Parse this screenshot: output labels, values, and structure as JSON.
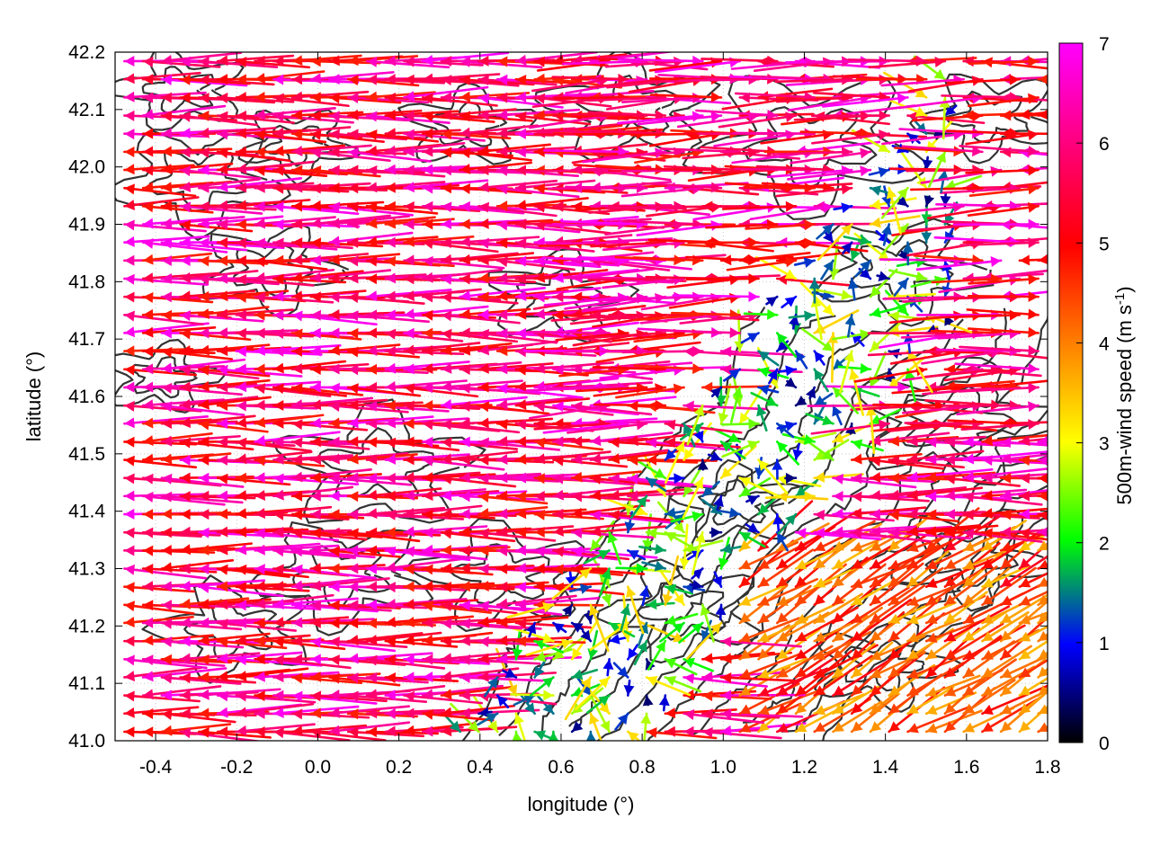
{
  "chart_data": {
    "type": "vector-field",
    "xlabel": "longitude (°)",
    "ylabel": "latitude (°)",
    "colorbar_label": "500m-wind speed (m s",
    "colorbar_label_sup": "-1",
    "colorbar_label_close": ")",
    "xlim": [
      -0.5,
      1.8
    ],
    "ylim": [
      41.0,
      42.2
    ],
    "xticks": [
      -0.4,
      -0.2,
      0.0,
      0.2,
      0.4,
      0.6,
      0.8,
      1.0,
      1.2,
      1.4,
      1.6,
      1.8
    ],
    "xtick_labels": [
      "-0.4",
      "-0.2",
      "0.0",
      "0.2",
      "0.4",
      "0.6",
      "0.8",
      "1.0",
      "1.2",
      "1.4",
      "1.6",
      "1.8"
    ],
    "yticks": [
      41.0,
      41.1,
      41.2,
      41.3,
      41.4,
      41.5,
      41.6,
      41.7,
      41.8,
      41.9,
      42.0,
      42.1,
      42.2
    ],
    "ytick_labels": [
      "41.0",
      "41.1",
      "41.2",
      "41.3",
      "41.4",
      "41.5",
      "41.6",
      "41.7",
      "41.8",
      "41.9",
      "42.0",
      "42.1",
      "42.2"
    ],
    "colorbar_range": [
      0,
      7
    ],
    "colorbar_ticks": [
      0,
      1,
      2,
      3,
      4,
      5,
      6,
      7
    ],
    "colorbar_tick_labels": [
      "0",
      "1",
      "2",
      "3",
      "4",
      "5",
      "6",
      "7"
    ],
    "colormap": [
      "#000000",
      "#0000ff",
      "#00ff00",
      "#ffff00",
      "#ff8000",
      "#ff0000",
      "#ff00ff"
    ],
    "grid": true,
    "contour_color": "#333333",
    "vector_regions": [
      {
        "region": "west-and-north",
        "direction": "westward",
        "speed_range": [
          5.5,
          7
        ]
      },
      {
        "region": "central-valley",
        "direction": "mixed",
        "speed_range": [
          0.5,
          4
        ]
      },
      {
        "region": "south-east",
        "direction": "south-westward",
        "speed_range": [
          4,
          6
        ]
      }
    ]
  }
}
